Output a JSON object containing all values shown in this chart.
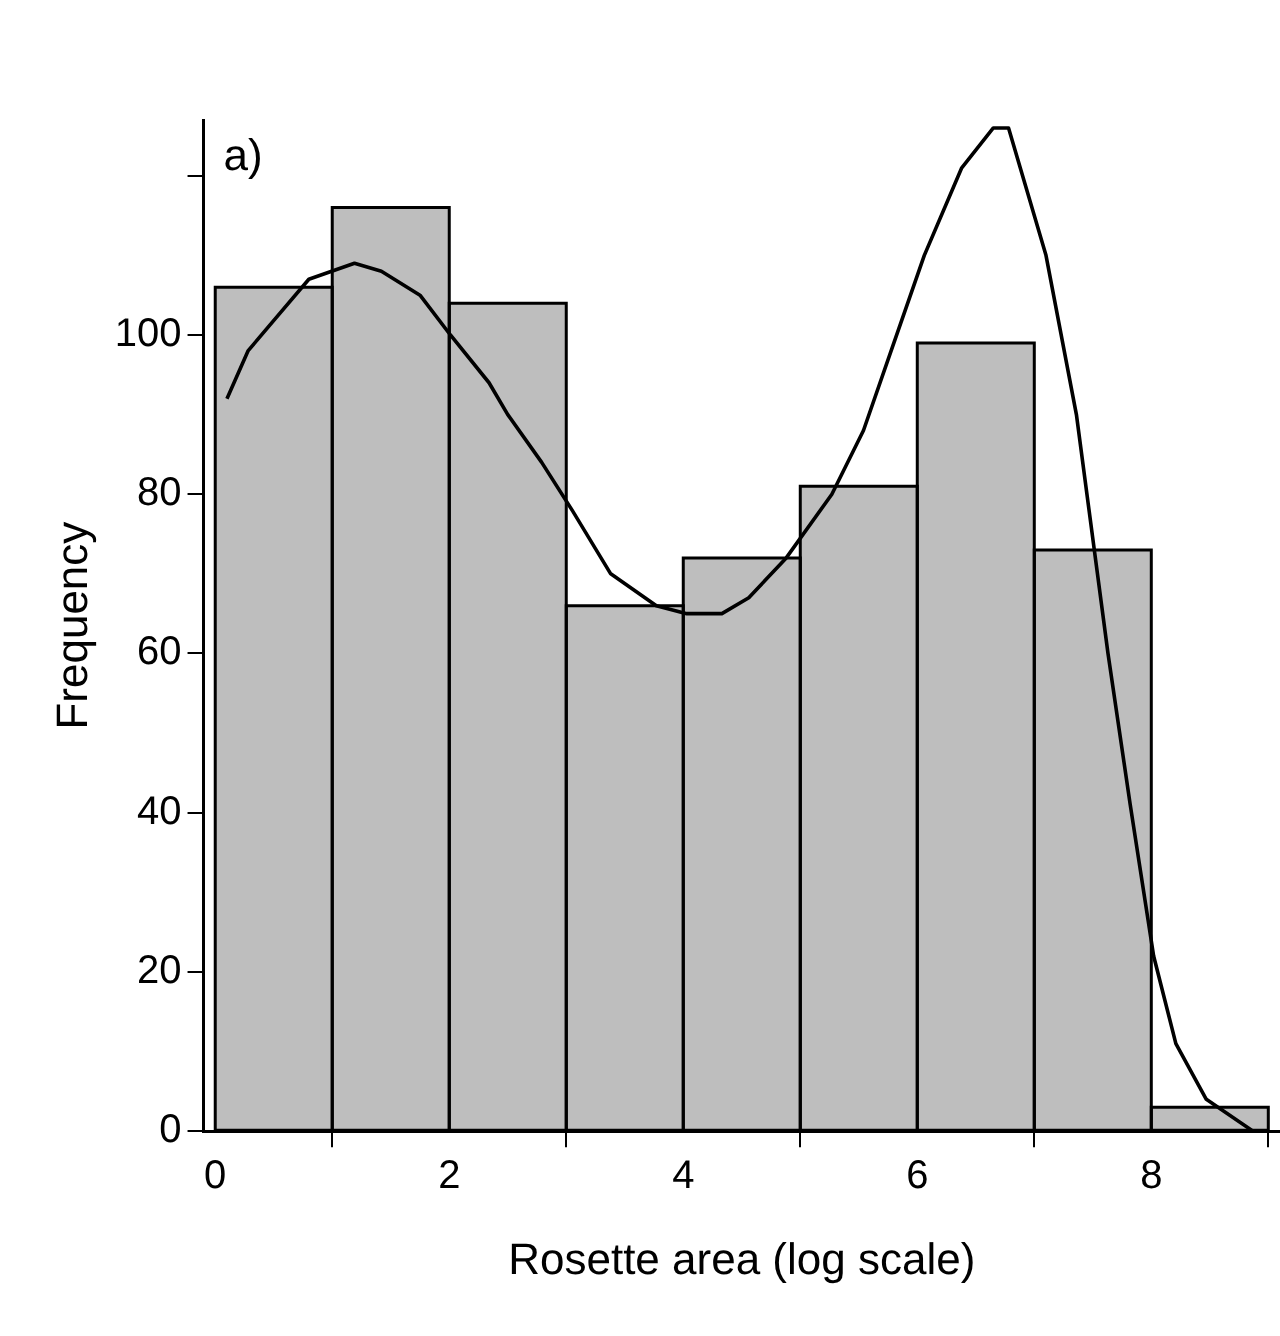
{
  "chart_data": {
    "type": "histogram",
    "xlabel": "Rosette area (log scale)",
    "ylabel": "Frequency",
    "annotations": [
      "a)"
    ],
    "bins": [
      0,
      1,
      2,
      3,
      4,
      5,
      6,
      7,
      8,
      9
    ],
    "values": [
      106,
      116,
      104,
      66,
      72,
      81,
      99,
      73,
      3
    ],
    "color": "#bebebe",
    "series": [
      {
        "type": "line",
        "color": "#000000",
        "x": [
          0.1,
          0.28,
          0.51,
          0.8,
          1.19,
          1.42,
          1.75,
          2.01,
          2.34,
          2.5,
          2.79,
          3.05,
          3.38,
          3.77,
          4.03,
          4.33,
          4.56,
          4.88,
          5.27,
          5.54,
          5.8,
          6.06,
          6.38,
          6.65,
          6.78,
          7.1,
          7.36,
          7.63,
          7.82,
          8.02,
          8.21,
          8.47,
          8.87
        ],
        "values": [
          92,
          98,
          102,
          107,
          109,
          108,
          105,
          100,
          94,
          90,
          84,
          78,
          70,
          66,
          65,
          65,
          67,
          72,
          80,
          88,
          99,
          110,
          121,
          126,
          126,
          110,
          90,
          60,
          41,
          22,
          11,
          4,
          0
        ]
      }
    ],
    "xlim": [
      -0.1,
      9.1
    ],
    "xticks": [
      0,
      2,
      4,
      6,
      8
    ],
    "ylim": [
      0,
      127
    ],
    "yticks": [
      0,
      20,
      40,
      60,
      80,
      100,
      {
        "value": 120,
        "label": null
      }
    ],
    "grid": false,
    "legend": false,
    "marker": "none",
    "line_style": "solid"
  }
}
